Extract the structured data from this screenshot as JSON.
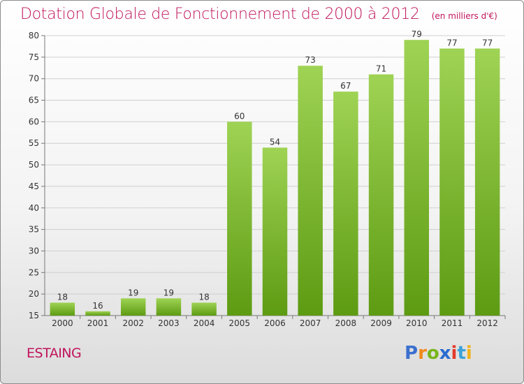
{
  "title": "Dotation Globale de Fonctionnement de 2000 à 2012",
  "unit_note": "(en milliers d'€)",
  "commune": "ESTAING",
  "brand": "Proxiti",
  "colors": {
    "title": "#c0145c",
    "bar_top": "#9fd354",
    "bar_bottom": "#5d9b12",
    "grid": "#cfcfcf",
    "axis": "#777777",
    "text": "#333333"
  },
  "chart_data": {
    "type": "bar",
    "title": "Dotation Globale de Fonctionnement de 2000 à 2012",
    "xlabel": "",
    "ylabel": "",
    "categories": [
      "2000",
      "2001",
      "2002",
      "2003",
      "2004",
      "2005",
      "2006",
      "2007",
      "2008",
      "2009",
      "2010",
      "2011",
      "2012"
    ],
    "values": [
      18,
      16,
      19,
      19,
      18,
      60,
      54,
      73,
      67,
      71,
      79,
      77,
      77
    ],
    "ylim": [
      15,
      80
    ],
    "yticks": [
      15,
      20,
      25,
      30,
      35,
      40,
      45,
      50,
      55,
      60,
      65,
      70,
      75,
      80
    ],
    "grid": true,
    "data_labels": true
  }
}
